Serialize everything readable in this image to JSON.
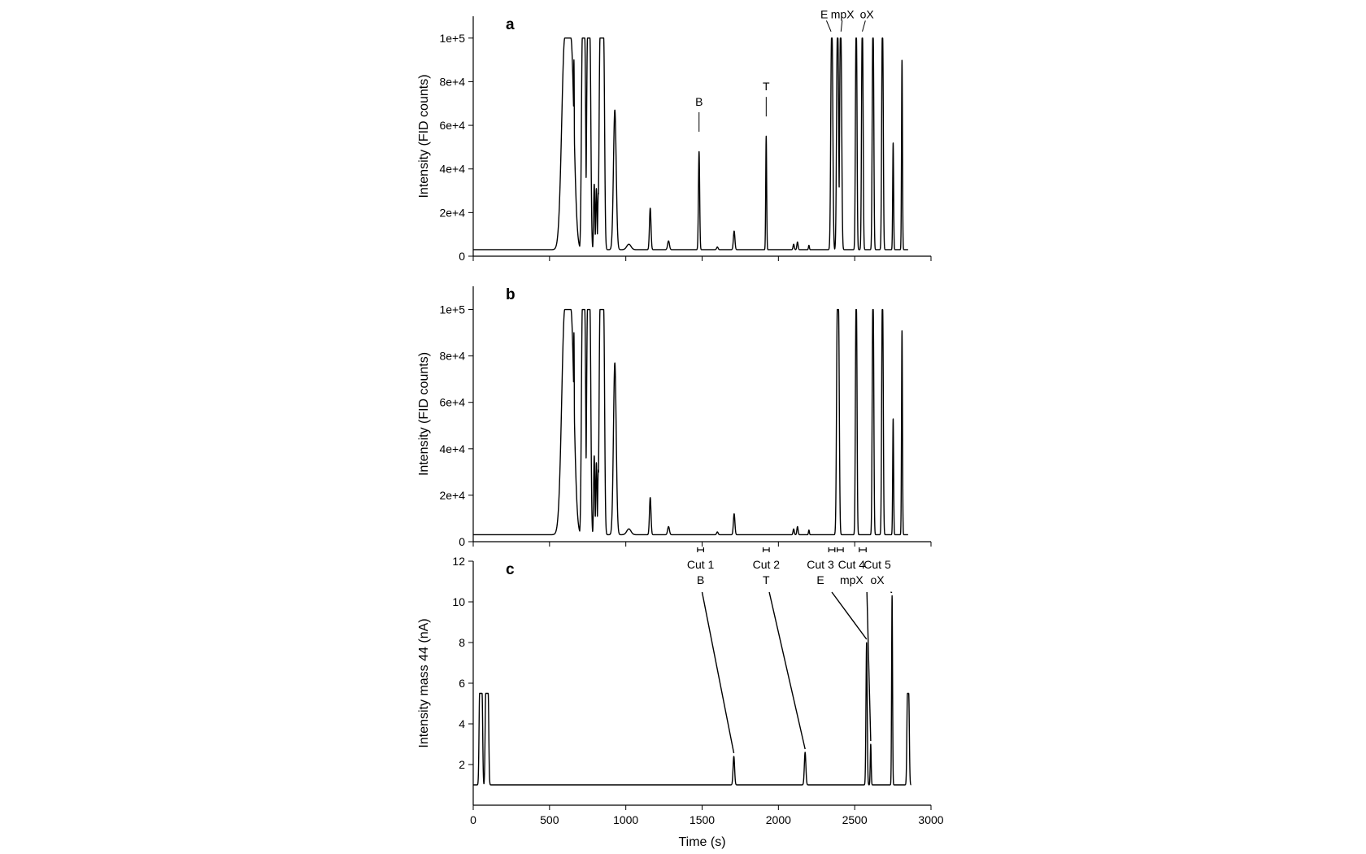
{
  "figure": {
    "colors": {
      "line": "#000000",
      "background": "#ffffff"
    }
  },
  "chart_data": [
    {
      "type": "line",
      "panel_label": "a",
      "xlabel": "",
      "ylabel": "Intensity (FID counts)",
      "xlim": [
        0,
        3000
      ],
      "ylim": [
        0,
        110000
      ],
      "yticks": [
        0,
        20000,
        40000,
        60000,
        80000,
        100000
      ],
      "ytick_labels": [
        "0",
        "2e+4",
        "4e+4",
        "6e+4",
        "8e+4",
        "1e+5"
      ],
      "xticks": [
        0,
        500,
        1000,
        1500,
        2000,
        2500,
        3000
      ],
      "xtick_labels": [],
      "baseline": 3000,
      "x_end": 2850,
      "peaks": [
        {
          "x": 620,
          "h": 100000,
          "w": 20,
          "flat": 40
        },
        {
          "x": 660,
          "h": 90000,
          "w": 3
        },
        {
          "x": 723,
          "h": 100000,
          "w": 6,
          "flat": 16
        },
        {
          "x": 757,
          "h": 100000,
          "w": 6,
          "flat": 16
        },
        {
          "x": 793,
          "h": 33000,
          "w": 4
        },
        {
          "x": 807,
          "h": 31000,
          "w": 4
        },
        {
          "x": 820,
          "h": 29000,
          "w": 4
        },
        {
          "x": 843,
          "h": 100000,
          "w": 6,
          "flat": 24
        },
        {
          "x": 928,
          "h": 67000,
          "w": 9
        },
        {
          "x": 1020,
          "h": 5500,
          "w": 14
        },
        {
          "x": 1160,
          "h": 22000,
          "w": 5
        },
        {
          "x": 1280,
          "h": 7000,
          "w": 6
        },
        {
          "x": 1480,
          "h": 48000,
          "w": 4
        },
        {
          "x": 1600,
          "h": 4200,
          "w": 5
        },
        {
          "x": 1710,
          "h": 11500,
          "w": 5
        },
        {
          "x": 1920,
          "h": 55000,
          "w": 3
        },
        {
          "x": 2100,
          "h": 5500,
          "w": 4
        },
        {
          "x": 2125,
          "h": 6500,
          "w": 4
        },
        {
          "x": 2200,
          "h": 5000,
          "w": 3
        },
        {
          "x": 2350,
          "h": 100000,
          "w": 5,
          "flat": 4
        },
        {
          "x": 2388,
          "h": 100000,
          "w": 5,
          "flat": 4
        },
        {
          "x": 2408,
          "h": 100000,
          "w": 5,
          "flat": 4
        },
        {
          "x": 2510,
          "h": 100000,
          "w": 4,
          "flat": 3
        },
        {
          "x": 2550,
          "h": 100000,
          "w": 4,
          "flat": 3
        },
        {
          "x": 2620,
          "h": 100000,
          "w": 4,
          "flat": 3
        },
        {
          "x": 2682,
          "h": 100000,
          "w": 4,
          "flat": 3
        },
        {
          "x": 2752,
          "h": 52000,
          "w": 3
        },
        {
          "x": 2810,
          "h": 90000,
          "w": 3
        }
      ],
      "annotations": [
        {
          "text": "B",
          "x": 1480,
          "y": 69000
        },
        {
          "text": "T",
          "x": 1920,
          "y": 76000
        },
        {
          "text": "E",
          "x": 2300,
          "y": 109000
        },
        {
          "text": "mpX",
          "x": 2420,
          "y": 109000
        },
        {
          "text": "oX",
          "x": 2580,
          "y": 109000
        }
      ]
    },
    {
      "type": "line",
      "panel_label": "b",
      "xlabel": "",
      "ylabel": "Intensity (FID counts)",
      "xlim": [
        0,
        3000
      ],
      "ylim": [
        0,
        110000
      ],
      "yticks": [
        0,
        20000,
        40000,
        60000,
        80000,
        100000
      ],
      "ytick_labels": [
        "0",
        "2e+4",
        "4e+4",
        "6e+4",
        "8e+4",
        "1e+5"
      ],
      "xticks": [
        0,
        500,
        1000,
        1500,
        2000,
        2500,
        3000
      ],
      "xtick_labels": [],
      "baseline": 3000,
      "x_end": 2850,
      "peaks": [
        {
          "x": 620,
          "h": 100000,
          "w": 20,
          "flat": 40
        },
        {
          "x": 660,
          "h": 90000,
          "w": 3
        },
        {
          "x": 723,
          "h": 100000,
          "w": 6,
          "flat": 16
        },
        {
          "x": 757,
          "h": 100000,
          "w": 6,
          "flat": 16
        },
        {
          "x": 793,
          "h": 37000,
          "w": 4
        },
        {
          "x": 807,
          "h": 34000,
          "w": 4
        },
        {
          "x": 820,
          "h": 31000,
          "w": 4
        },
        {
          "x": 843,
          "h": 100000,
          "w": 6,
          "flat": 24
        },
        {
          "x": 928,
          "h": 77000,
          "w": 9
        },
        {
          "x": 1020,
          "h": 5500,
          "w": 14
        },
        {
          "x": 1160,
          "h": 19000,
          "w": 5
        },
        {
          "x": 1280,
          "h": 6500,
          "w": 6
        },
        {
          "x": 1600,
          "h": 4200,
          "w": 5
        },
        {
          "x": 1710,
          "h": 12000,
          "w": 5
        },
        {
          "x": 2100,
          "h": 5500,
          "w": 4
        },
        {
          "x": 2125,
          "h": 6500,
          "w": 4
        },
        {
          "x": 2200,
          "h": 5000,
          "w": 3
        },
        {
          "x": 2390,
          "h": 100000,
          "w": 5,
          "flat": 8
        },
        {
          "x": 2510,
          "h": 100000,
          "w": 4,
          "flat": 3
        },
        {
          "x": 2620,
          "h": 100000,
          "w": 4,
          "flat": 3
        },
        {
          "x": 2682,
          "h": 100000,
          "w": 4,
          "flat": 3
        },
        {
          "x": 2752,
          "h": 53000,
          "w": 3
        },
        {
          "x": 2810,
          "h": 91000,
          "w": 3
        }
      ],
      "cuts": [
        {
          "label": "Cut 1",
          "compound": "B",
          "from": 1470,
          "to": 1510
        },
        {
          "label": "Cut 2",
          "compound": "T",
          "from": 1900,
          "to": 1940
        },
        {
          "label": "Cut 3",
          "compound": "E",
          "from": 2330,
          "to": 2370
        },
        {
          "label": "Cut 4",
          "compound": "mpX",
          "from": 2385,
          "to": 2425
        },
        {
          "label": "Cut 5",
          "compound": "oX",
          "from": 2530,
          "to": 2575
        }
      ]
    },
    {
      "type": "line",
      "panel_label": "c",
      "xlabel": "Time (s)",
      "ylabel": "Intensity mass 44 (nA)",
      "xlim": [
        0,
        3000
      ],
      "ylim": [
        0,
        12
      ],
      "yticks": [
        2,
        4,
        6,
        8,
        10,
        12
      ],
      "ytick_labels": [
        "2",
        "4",
        "6",
        "8",
        "10",
        "12"
      ],
      "xticks": [
        0,
        500,
        1000,
        1500,
        2000,
        2500,
        3000
      ],
      "xtick_labels": [
        "0",
        "500",
        "1000",
        "1500",
        "2000",
        "2500",
        "3000"
      ],
      "baseline": 1,
      "x_start": 0,
      "x_end": 2870,
      "peaks": [
        {
          "x": 50,
          "h": 5.5,
          "w": 4,
          "flat": 16
        },
        {
          "x": 90,
          "h": 5.5,
          "w": 4,
          "flat": 16
        },
        {
          "x": 1708,
          "h": 2.4,
          "w": 5
        },
        {
          "x": 2175,
          "h": 2.6,
          "w": 5
        },
        {
          "x": 2578,
          "h": 8.0,
          "w": 4
        },
        {
          "x": 2605,
          "h": 3.0,
          "w": 3
        },
        {
          "x": 2745,
          "h": 10.3,
          "w": 3
        },
        {
          "x": 2850,
          "h": 5.5,
          "w": 4,
          "flat": 8
        }
      ],
      "connectors": [
        {
          "label_x": 1500,
          "peak_x": 1708,
          "peak_y": 2.4
        },
        {
          "label_x": 1940,
          "peak_x": 2175,
          "peak_y": 2.6
        },
        {
          "label_x": 2350,
          "peak_x": 2578,
          "peak_y": 8.0
        },
        {
          "label_x": 2580,
          "peak_x": 2605,
          "peak_y": 3.0
        },
        {
          "label_x": 2735,
          "peak_x": 2745,
          "peak_y": 10.3
        }
      ]
    }
  ]
}
